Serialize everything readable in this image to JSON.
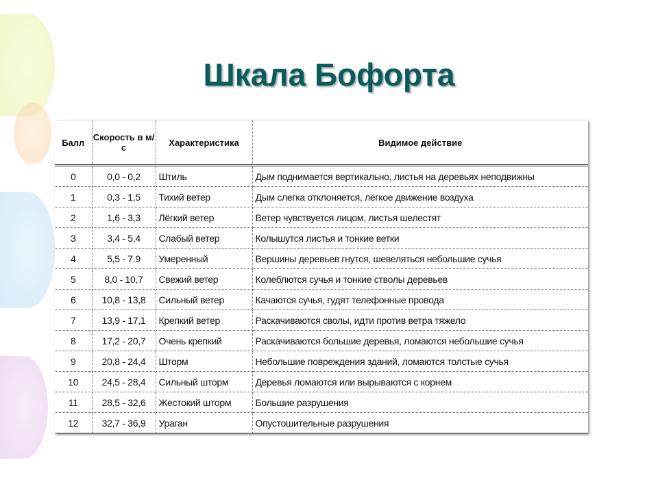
{
  "title": "Шкала Бофорта",
  "table": {
    "headers": [
      "Балл",
      "Скорость в м/с",
      "Характеристика",
      "Видимое действие"
    ],
    "rows": [
      [
        "0",
        "0,0 - 0,2",
        "Штиль",
        "Дым поднимается вертикально, листья на деревьях неподвижны"
      ],
      [
        "1",
        "0,3 - 1,5",
        "Тихий ветер",
        "Дым слегка отклоняется, лёгкое движение воздуха"
      ],
      [
        "2",
        "1,6 - 3,3",
        "Лёгкий ветер",
        "Ветер чувствуется лицом, листья шелестят"
      ],
      [
        "3",
        "3,4 - 5,4",
        "Слабый ветер",
        "Колышутся листья и тонкие ветки"
      ],
      [
        "4",
        "5,5 - 7.9",
        "Умеренный",
        "Вершины деревьев гнутся, шевеляться небольшие сучья"
      ],
      [
        "5",
        "8,0 - 10,7",
        "Свежий ветер",
        "Колеблются сучья и тонкие стволы деревьев"
      ],
      [
        "6",
        "10,8 - 13,8",
        "Сильный ветер",
        "Качаются сучья, гудят телефонные провода"
      ],
      [
        "7",
        "13,9 - 17,1",
        "Крепкий ветер",
        "Раскачиваются сволы,  идти против ветра тяжело"
      ],
      [
        "8",
        "17,2 - 20,7",
        "Очень крепкий",
        "Раскачиваются большие деревья, ломаются небольшие сучья"
      ],
      [
        "9",
        "20,8 - 24,4",
        "Шторм",
        "Небольшие повреждения зданий, ломаются толстые сучья"
      ],
      [
        "10",
        "24,5 - 28,4",
        "Сильный шторм",
        "Деревья ломаются или вырываются с корнем"
      ],
      [
        "11",
        "28,5 - 32,6",
        "Жестокий шторм",
        "Большие разрушения"
      ],
      [
        "12",
        "32,7 - 36,9",
        "Ураган",
        "Опустошительные разрушения"
      ]
    ]
  },
  "colors": {
    "title": "#0d5a5a"
  }
}
